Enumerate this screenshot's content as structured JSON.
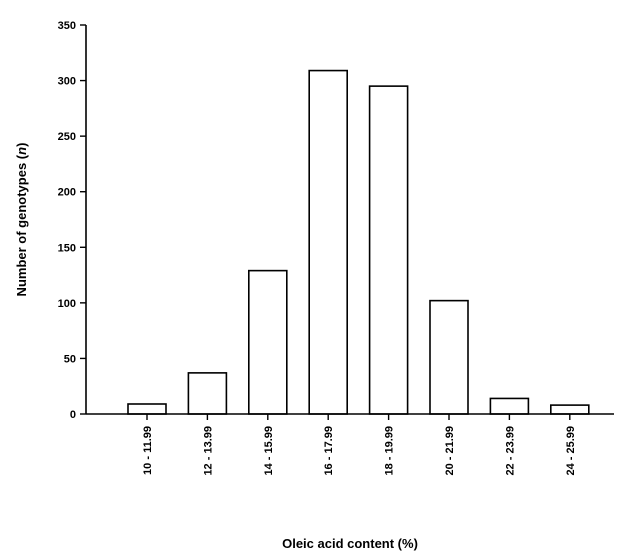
{
  "chart_data": {
    "type": "bar",
    "title": "",
    "xlabel": "Oleic acid content (%)",
    "ylabel_prefix": "Number of genotypes (",
    "ylabel_symbol": "n",
    "ylabel_suffix": ")",
    "categories": [
      "10 - 11.99",
      "12 - 13.99",
      "14 - 15.99",
      "16 - 17.99",
      "18 - 19.99",
      "20 - 21.99",
      "22 - 23.99",
      "24 - 25.99"
    ],
    "values": [
      9,
      37,
      129,
      309,
      295,
      102,
      14,
      8
    ],
    "ylim": [
      0,
      350
    ],
    "yticks": [
      0,
      50,
      100,
      150,
      200,
      250,
      300,
      350
    ],
    "grid": false,
    "legend": "none",
    "bar_fill": "#ffffff",
    "bar_stroke": "#000000"
  }
}
